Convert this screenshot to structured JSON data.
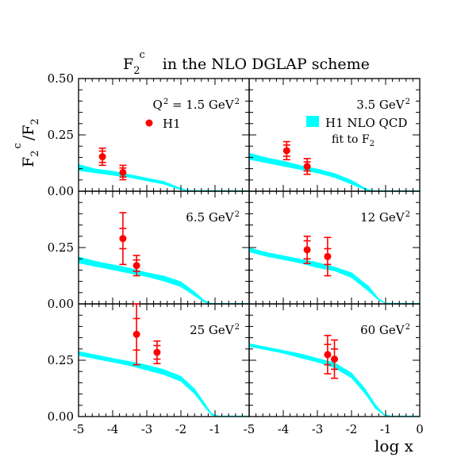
{
  "colors": {
    "band": "#00ffff",
    "data": "#ff0000",
    "axis": "#000000"
  },
  "chart_data": {
    "type": "scatter",
    "title_main": "F",
    "title_sub": "2",
    "title_sup": "c",
    "title_rest": "in  the  NLO DGLAP scheme",
    "ylabel": {
      "main": "F",
      "sub": "2",
      "sup": "c",
      "slash": "/",
      "main2": "F",
      "sub2": "2"
    },
    "xlabel": "log x",
    "xlim": [
      -5,
      0
    ],
    "ylim": [
      0,
      0.5
    ],
    "x_ticks": [
      "-5",
      "-4",
      "-3",
      "-2",
      "-1"
    ],
    "x_ticks_right": [
      "-5",
      "-4",
      "-3",
      "-2",
      "-1",
      "0"
    ],
    "y_ticks_top": [
      "0.50",
      "0.25",
      "0.00"
    ],
    "y_ticks": [
      "0.25",
      "0.00"
    ],
    "legend": {
      "data_label": "H1",
      "band_label_line1": "H1 NLO QCD",
      "band_label_line2": "fit to F",
      "band_label_sub": "2"
    },
    "panels": [
      {
        "q2_prefix": "Q",
        "q2_sup": "2",
        "q2_value": " = 1.5 GeV",
        "unit_sup": "2",
        "points": [
          {
            "x": -4.3,
            "y": 0.153,
            "stat": 0.025,
            "tot": 0.038
          },
          {
            "x": -3.7,
            "y": 0.083,
            "stat": 0.02,
            "tot": 0.032
          }
        ],
        "band": [
          {
            "x": -5.0,
            "lo": 0.09,
            "hi": 0.12
          },
          {
            "x": -4.5,
            "lo": 0.08,
            "hi": 0.1
          },
          {
            "x": -4.0,
            "lo": 0.07,
            "hi": 0.09
          },
          {
            "x": -3.5,
            "lo": 0.06,
            "hi": 0.075
          },
          {
            "x": -3.0,
            "lo": 0.045,
            "hi": 0.06
          },
          {
            "x": -2.5,
            "lo": 0.03,
            "hi": 0.045
          },
          {
            "x": -2.1,
            "lo": 0.01,
            "hi": 0.02
          },
          {
            "x": -1.8,
            "lo": 0.0,
            "hi": 0.005
          }
        ]
      },
      {
        "q2_prefix": "",
        "q2_sup": "",
        "q2_value": "3.5 GeV",
        "unit_sup": "2",
        "points": [
          {
            "x": -3.9,
            "y": 0.18,
            "stat": 0.025,
            "tot": 0.04
          },
          {
            "x": -3.3,
            "y": 0.11,
            "stat": 0.02,
            "tot": 0.035
          }
        ],
        "band": [
          {
            "x": -5.0,
            "lo": 0.14,
            "hi": 0.17
          },
          {
            "x": -4.5,
            "lo": 0.125,
            "hi": 0.15
          },
          {
            "x": -4.0,
            "lo": 0.11,
            "hi": 0.135
          },
          {
            "x": -3.5,
            "lo": 0.095,
            "hi": 0.115
          },
          {
            "x": -3.0,
            "lo": 0.08,
            "hi": 0.1
          },
          {
            "x": -2.5,
            "lo": 0.06,
            "hi": 0.08
          },
          {
            "x": -2.0,
            "lo": 0.03,
            "hi": 0.05
          },
          {
            "x": -1.6,
            "lo": 0.005,
            "hi": 0.015
          },
          {
            "x": -1.4,
            "lo": 0.0,
            "hi": 0.004
          }
        ]
      },
      {
        "q2_prefix": "",
        "q2_sup": "",
        "q2_value": "6.5 GeV",
        "unit_sup": "2",
        "points": [
          {
            "x": -3.7,
            "y": 0.29,
            "stat": 0.045,
            "tot": 0.115
          },
          {
            "x": -3.3,
            "y": 0.17,
            "stat": 0.025,
            "tot": 0.045
          }
        ],
        "band": [
          {
            "x": -5.0,
            "lo": 0.18,
            "hi": 0.21
          },
          {
            "x": -4.5,
            "lo": 0.165,
            "hi": 0.19
          },
          {
            "x": -4.0,
            "lo": 0.15,
            "hi": 0.175
          },
          {
            "x": -3.5,
            "lo": 0.135,
            "hi": 0.16
          },
          {
            "x": -3.0,
            "lo": 0.12,
            "hi": 0.14
          },
          {
            "x": -2.5,
            "lo": 0.1,
            "hi": 0.125
          },
          {
            "x": -2.0,
            "lo": 0.075,
            "hi": 0.1
          },
          {
            "x": -1.6,
            "lo": 0.035,
            "hi": 0.055
          },
          {
            "x": -1.3,
            "lo": 0.005,
            "hi": 0.015
          },
          {
            "x": -1.1,
            "lo": 0.0,
            "hi": 0.004
          }
        ]
      },
      {
        "q2_prefix": "",
        "q2_sup": "",
        "q2_value": "12 GeV",
        "unit_sup": "2",
        "points": [
          {
            "x": -3.3,
            "y": 0.24,
            "stat": 0.04,
            "tot": 0.06
          },
          {
            "x": -2.7,
            "y": 0.21,
            "stat": 0.035,
            "tot": 0.085
          }
        ],
        "band": [
          {
            "x": -5.0,
            "lo": 0.23,
            "hi": 0.25
          },
          {
            "x": -4.5,
            "lo": 0.21,
            "hi": 0.23
          },
          {
            "x": -4.0,
            "lo": 0.195,
            "hi": 0.215
          },
          {
            "x": -3.5,
            "lo": 0.18,
            "hi": 0.2
          },
          {
            "x": -3.0,
            "lo": 0.16,
            "hi": 0.185
          },
          {
            "x": -2.5,
            "lo": 0.145,
            "hi": 0.165
          },
          {
            "x": -2.0,
            "lo": 0.115,
            "hi": 0.14
          },
          {
            "x": -1.5,
            "lo": 0.055,
            "hi": 0.08
          },
          {
            "x": -1.2,
            "lo": 0.015,
            "hi": 0.025
          },
          {
            "x": -1.0,
            "lo": 0.0,
            "hi": 0.005
          }
        ]
      },
      {
        "q2_prefix": "",
        "q2_sup": "",
        "q2_value": "25 GeV",
        "unit_sup": "2",
        "points": [
          {
            "x": -3.3,
            "y": 0.365,
            "stat": 0.07,
            "tot": 0.135
          },
          {
            "x": -2.7,
            "y": 0.285,
            "stat": 0.03,
            "tot": 0.05
          }
        ],
        "band": [
          {
            "x": -5.0,
            "lo": 0.27,
            "hi": 0.29
          },
          {
            "x": -4.5,
            "lo": 0.255,
            "hi": 0.275
          },
          {
            "x": -4.0,
            "lo": 0.24,
            "hi": 0.26
          },
          {
            "x": -3.5,
            "lo": 0.225,
            "hi": 0.245
          },
          {
            "x": -3.0,
            "lo": 0.205,
            "hi": 0.23
          },
          {
            "x": -2.5,
            "lo": 0.185,
            "hi": 0.21
          },
          {
            "x": -2.0,
            "lo": 0.155,
            "hi": 0.18
          },
          {
            "x": -1.6,
            "lo": 0.1,
            "hi": 0.125
          },
          {
            "x": -1.3,
            "lo": 0.04,
            "hi": 0.06
          },
          {
            "x": -1.1,
            "lo": 0.005,
            "hi": 0.015
          },
          {
            "x": -0.9,
            "lo": 0.0,
            "hi": 0.004
          }
        ]
      },
      {
        "q2_prefix": "",
        "q2_sup": "",
        "q2_value": "60 GeV",
        "unit_sup": "2",
        "points": [
          {
            "x": -2.7,
            "y": 0.275,
            "stat": 0.045,
            "tot": 0.085
          },
          {
            "x": -2.5,
            "y": 0.255,
            "stat": 0.045,
            "tot": 0.085
          }
        ],
        "band": [
          {
            "x": -5.0,
            "lo": 0.31,
            "hi": 0.325
          },
          {
            "x": -4.5,
            "lo": 0.295,
            "hi": 0.31
          },
          {
            "x": -4.0,
            "lo": 0.28,
            "hi": 0.295
          },
          {
            "x": -3.5,
            "lo": 0.26,
            "hi": 0.28
          },
          {
            "x": -3.0,
            "lo": 0.24,
            "hi": 0.26
          },
          {
            "x": -2.5,
            "lo": 0.215,
            "hi": 0.24
          },
          {
            "x": -2.0,
            "lo": 0.17,
            "hi": 0.195
          },
          {
            "x": -1.6,
            "lo": 0.1,
            "hi": 0.125
          },
          {
            "x": -1.3,
            "lo": 0.035,
            "hi": 0.055
          },
          {
            "x": -1.05,
            "lo": 0.005,
            "hi": 0.012
          },
          {
            "x": -0.85,
            "lo": 0.0,
            "hi": 0.004
          }
        ]
      }
    ]
  }
}
